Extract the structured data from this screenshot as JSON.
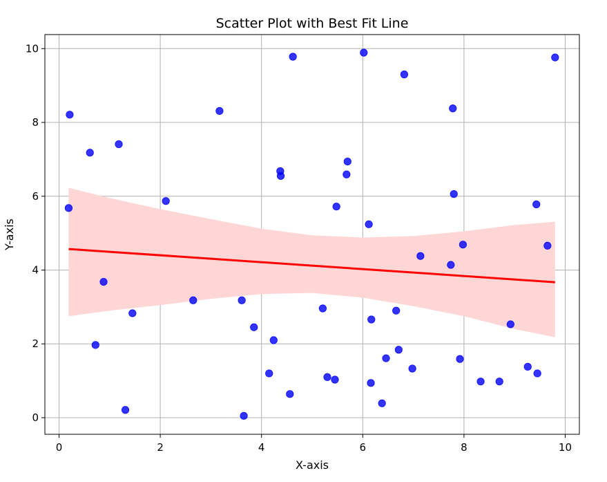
{
  "chart_data": {
    "type": "scatter",
    "title": "Scatter Plot with Best Fit Line",
    "xlabel": "X-axis",
    "ylabel": "Y-axis",
    "xlim": [
      -0.28,
      10.28
    ],
    "ylim": [
      -0.45,
      10.38
    ],
    "xticks": [
      0,
      2,
      4,
      6,
      8,
      10
    ],
    "yticks": [
      0,
      2,
      4,
      6,
      8,
      10
    ],
    "grid": true,
    "point_color": "#0000ff",
    "line_color": "#ff0000",
    "band_color": "#ffd6d6",
    "points": [
      {
        "x": 0.19,
        "y": 5.68
      },
      {
        "x": 0.21,
        "y": 8.21
      },
      {
        "x": 0.61,
        "y": 7.18
      },
      {
        "x": 0.72,
        "y": 1.97
      },
      {
        "x": 0.88,
        "y": 3.68
      },
      {
        "x": 1.18,
        "y": 7.41
      },
      {
        "x": 1.31,
        "y": 0.21
      },
      {
        "x": 1.45,
        "y": 2.83
      },
      {
        "x": 2.11,
        "y": 5.87
      },
      {
        "x": 2.65,
        "y": 3.18
      },
      {
        "x": 3.17,
        "y": 8.31
      },
      {
        "x": 3.61,
        "y": 3.18
      },
      {
        "x": 3.65,
        "y": 0.05
      },
      {
        "x": 3.85,
        "y": 2.45
      },
      {
        "x": 4.15,
        "y": 1.2
      },
      {
        "x": 4.24,
        "y": 2.1
      },
      {
        "x": 4.37,
        "y": 6.68
      },
      {
        "x": 4.38,
        "y": 6.55
      },
      {
        "x": 4.56,
        "y": 0.64
      },
      {
        "x": 4.62,
        "y": 9.78
      },
      {
        "x": 5.21,
        "y": 2.96
      },
      {
        "x": 5.3,
        "y": 1.1
      },
      {
        "x": 5.45,
        "y": 1.03
      },
      {
        "x": 5.48,
        "y": 5.72
      },
      {
        "x": 5.68,
        "y": 6.59
      },
      {
        "x": 5.7,
        "y": 6.94
      },
      {
        "x": 6.02,
        "y": 9.89
      },
      {
        "x": 6.12,
        "y": 5.24
      },
      {
        "x": 6.16,
        "y": 0.94
      },
      {
        "x": 6.17,
        "y": 2.66
      },
      {
        "x": 6.38,
        "y": 0.39
      },
      {
        "x": 6.46,
        "y": 1.61
      },
      {
        "x": 6.66,
        "y": 2.9
      },
      {
        "x": 6.71,
        "y": 1.84
      },
      {
        "x": 6.82,
        "y": 9.3
      },
      {
        "x": 6.98,
        "y": 1.33
      },
      {
        "x": 7.14,
        "y": 4.38
      },
      {
        "x": 7.74,
        "y": 4.14
      },
      {
        "x": 7.78,
        "y": 8.38
      },
      {
        "x": 7.8,
        "y": 6.06
      },
      {
        "x": 7.92,
        "y": 1.59
      },
      {
        "x": 7.98,
        "y": 4.69
      },
      {
        "x": 8.33,
        "y": 0.98
      },
      {
        "x": 8.7,
        "y": 0.98
      },
      {
        "x": 8.92,
        "y": 2.53
      },
      {
        "x": 9.26,
        "y": 1.38
      },
      {
        "x": 9.43,
        "y": 5.78
      },
      {
        "x": 9.45,
        "y": 1.2
      },
      {
        "x": 9.65,
        "y": 4.66
      },
      {
        "x": 9.8,
        "y": 9.76
      }
    ],
    "fit_line": {
      "x": [
        0.19,
        9.8
      ],
      "y": [
        4.57,
        3.67
      ]
    },
    "confidence_band": {
      "x": [
        0.19,
        1,
        2,
        3,
        4,
        5,
        6,
        7,
        8,
        9,
        9.8
      ],
      "upper": [
        6.23,
        5.95,
        5.65,
        5.38,
        5.12,
        4.94,
        4.88,
        4.92,
        5.05,
        5.22,
        5.31
      ],
      "lower": [
        2.75,
        2.9,
        3.05,
        3.22,
        3.35,
        3.38,
        3.25,
        3.02,
        2.75,
        2.4,
        2.18
      ]
    }
  }
}
